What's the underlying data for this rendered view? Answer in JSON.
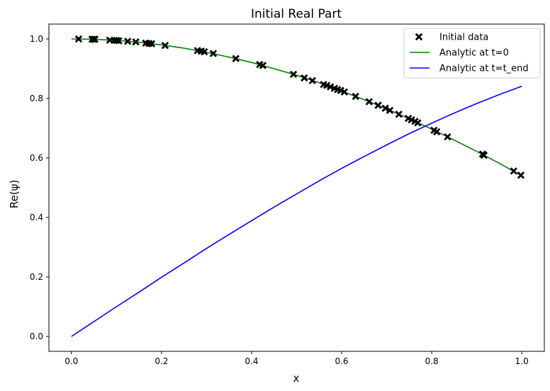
{
  "chart_data": {
    "type": "line",
    "title": "Initial Real Part",
    "xlabel": "x",
    "ylabel": "Re(ψ)",
    "xlim": [
      -0.05,
      1.05
    ],
    "ylim": [
      -0.05,
      1.05
    ],
    "xticks": [
      0.0,
      0.2,
      0.4,
      0.6,
      0.8,
      1.0
    ],
    "xtick_labels": [
      "0.0",
      "0.2",
      "0.4",
      "0.6",
      "0.8",
      "1.0"
    ],
    "yticks": [
      0.0,
      0.2,
      0.4,
      0.6,
      0.8,
      1.0
    ],
    "ytick_labels": [
      "0.0",
      "0.2",
      "0.4",
      "0.6",
      "0.8",
      "1.0"
    ],
    "grid": false,
    "legend_position": "top-right",
    "series": [
      {
        "name": "Initial data",
        "kind": "scatter",
        "marker": "x-filled",
        "color": "#000000",
        "x": [
          0.016,
          0.046,
          0.05,
          0.052,
          0.085,
          0.095,
          0.1,
          0.105,
          0.125,
          0.143,
          0.165,
          0.172,
          0.178,
          0.208,
          0.28,
          0.288,
          0.295,
          0.315,
          0.365,
          0.418,
          0.425,
          0.493,
          0.517,
          0.535,
          0.56,
          0.567,
          0.575,
          0.584,
          0.591,
          0.598,
          0.606,
          0.631,
          0.661,
          0.681,
          0.697,
          0.707,
          0.727,
          0.748,
          0.755,
          0.763,
          0.769,
          0.805,
          0.811,
          0.835,
          0.913,
          0.916,
          0.982,
          0.998
        ],
        "y": [
          1.0,
          0.999,
          0.999,
          0.999,
          0.996,
          0.995,
          0.995,
          0.994,
          0.992,
          0.99,
          0.986,
          0.985,
          0.984,
          0.978,
          0.961,
          0.959,
          0.957,
          0.951,
          0.934,
          0.914,
          0.911,
          0.881,
          0.869,
          0.86,
          0.847,
          0.844,
          0.839,
          0.834,
          0.83,
          0.827,
          0.822,
          0.807,
          0.789,
          0.777,
          0.767,
          0.76,
          0.747,
          0.733,
          0.728,
          0.723,
          0.718,
          0.693,
          0.688,
          0.671,
          0.613,
          0.609,
          0.556,
          0.542
        ]
      },
      {
        "name": "Analytic at t=0",
        "kind": "line",
        "color": "#008000",
        "x": [
          0.0,
          0.05,
          0.1,
          0.15,
          0.2,
          0.25,
          0.3,
          0.35,
          0.4,
          0.45,
          0.5,
          0.55,
          0.6,
          0.65,
          0.7,
          0.75,
          0.8,
          0.85,
          0.9,
          0.95,
          1.0
        ],
        "y": [
          1.0,
          0.999,
          0.995,
          0.989,
          0.98,
          0.969,
          0.955,
          0.939,
          0.921,
          0.9,
          0.878,
          0.853,
          0.825,
          0.796,
          0.765,
          0.732,
          0.697,
          0.66,
          0.622,
          0.582,
          0.54
        ]
      },
      {
        "name": "Analytic at t=t_end",
        "kind": "line",
        "color": "#0000ff",
        "x": [
          0.0,
          0.05,
          0.1,
          0.15,
          0.2,
          0.25,
          0.3,
          0.35,
          0.4,
          0.45,
          0.5,
          0.55,
          0.6,
          0.65,
          0.7,
          0.75,
          0.8,
          0.85,
          0.9,
          0.95,
          1.0
        ],
        "y": [
          0.0,
          0.05,
          0.1,
          0.149,
          0.199,
          0.247,
          0.296,
          0.343,
          0.389,
          0.435,
          0.479,
          0.523,
          0.565,
          0.605,
          0.644,
          0.682,
          0.717,
          0.751,
          0.783,
          0.813,
          0.841
        ]
      }
    ]
  }
}
